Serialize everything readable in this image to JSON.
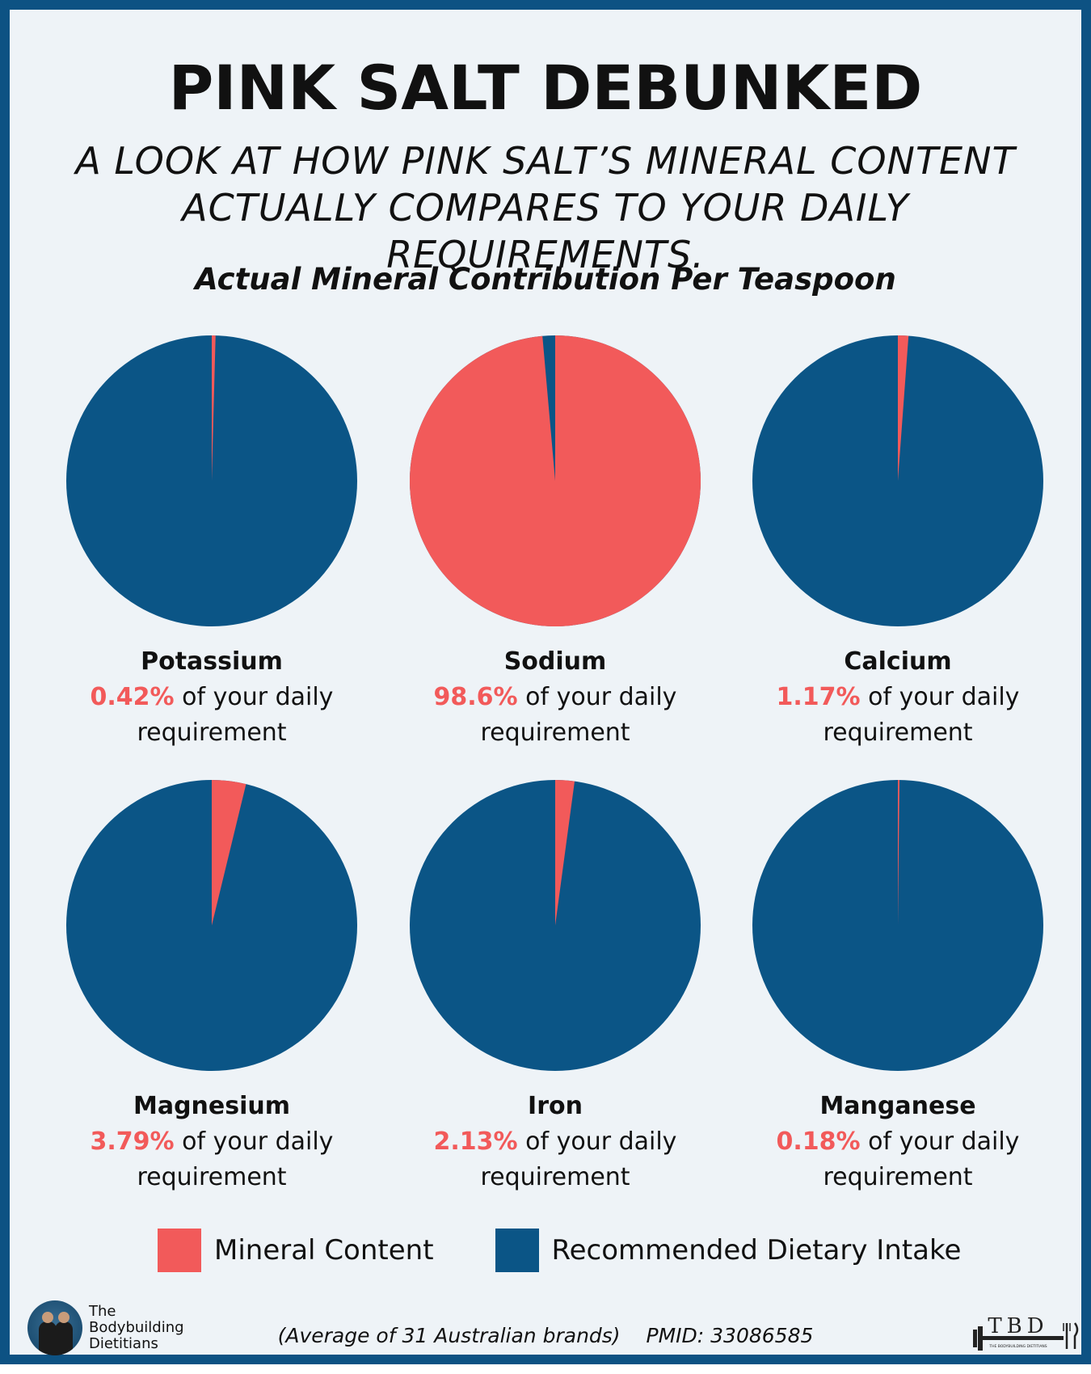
{
  "title": "PINK SALT DEBUNKED",
  "subtitle_line1": "A LOOK AT HOW PINK SALT’S MINERAL CONTENT",
  "subtitle_line2": "ACTUALLY COMPARES TO YOUR DAILY REQUIREMENTS.",
  "chart_data": {
    "type": "pie",
    "title": "Actual Mineral Contribution Per Teaspoon",
    "series": [
      {
        "name": "Potassium",
        "value": 0.42,
        "label": "0.42%"
      },
      {
        "name": "Sodium",
        "value": 98.6,
        "label": "98.6%"
      },
      {
        "name": "Calcium",
        "value": 1.17,
        "label": "1.17%"
      },
      {
        "name": "Magnesium",
        "value": 3.79,
        "label": "3.79%"
      },
      {
        "name": "Iron",
        "value": 2.13,
        "label": "2.13%"
      },
      {
        "name": "Manganese",
        "value": 0.18,
        "label": "0.18%"
      }
    ],
    "unit": "% of daily requirement",
    "desc_suffix": "of your daily",
    "desc_line2": "requirement",
    "legend": [
      {
        "name": "Mineral Content",
        "color": "#f25a5a"
      },
      {
        "name": "Recommended Dietary Intake",
        "color": "#0b5586"
      }
    ]
  },
  "brand": {
    "line1": "The",
    "line2": "Bodybuilding",
    "line3": "Dietitians"
  },
  "footnote": {
    "source": "(Average of 31 Australian brands)",
    "pmid": "PMID: 33086585"
  },
  "logo": {
    "text": "TBD",
    "tagline": "THE BODYBUILDING DIETITIANS"
  }
}
